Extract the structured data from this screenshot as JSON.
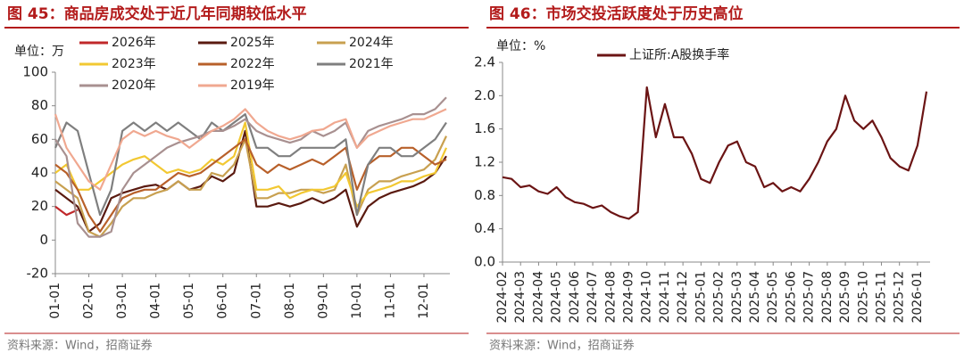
{
  "chart_data": [
    {
      "type": "line",
      "title": "图 45：商品房成交处于近几年同期较低水平",
      "unit": "单位：万",
      "source": "资料来源：Wind，招商证券",
      "categories": [
        "01-01",
        null,
        null,
        "02-01",
        null,
        null,
        "03-01",
        null,
        null,
        "04-01",
        null,
        null,
        "05-01",
        null,
        null,
        "06-01",
        null,
        null,
        "07-01",
        null,
        null,
        "08-01",
        null,
        null,
        "09-01",
        null,
        null,
        "10-01",
        null,
        null,
        "11-01",
        null,
        null,
        "12-01",
        null,
        null
      ],
      "ylim": [
        -20,
        100
      ],
      "yticks": [
        -20,
        0,
        20,
        40,
        60,
        80,
        100
      ],
      "series": [
        {
          "name": "2026年",
          "color": "#c0282a",
          "values": [
            20,
            15,
            18,
            null,
            null,
            null,
            null,
            null,
            null,
            null,
            null,
            null,
            null,
            null,
            null,
            null,
            null,
            null,
            null,
            null,
            null,
            null,
            null,
            null,
            null,
            null,
            null,
            null,
            null,
            null,
            null,
            null,
            null,
            null,
            null,
            null
          ]
        },
        {
          "name": "2025年",
          "color": "#5a1a10",
          "values": [
            30,
            25,
            20,
            5,
            10,
            25,
            28,
            30,
            32,
            33,
            30,
            35,
            30,
            32,
            38,
            35,
            40,
            65,
            20,
            20,
            22,
            20,
            22,
            25,
            22,
            25,
            30,
            8,
            20,
            25,
            28,
            30,
            32,
            35,
            40,
            50
          ]
        },
        {
          "name": "2024年",
          "color": "#c8a050",
          "values": [
            35,
            30,
            25,
            5,
            2,
            10,
            20,
            25,
            25,
            28,
            30,
            35,
            30,
            30,
            40,
            38,
            45,
            60,
            25,
            25,
            28,
            28,
            30,
            30,
            28,
            30,
            45,
            15,
            30,
            35,
            35,
            38,
            40,
            42,
            48,
            62
          ]
        },
        {
          "name": "2023年",
          "color": "#f2c832",
          "values": [
            40,
            45,
            30,
            30,
            35,
            40,
            45,
            48,
            50,
            45,
            40,
            42,
            40,
            42,
            48,
            45,
            50,
            70,
            30,
            30,
            32,
            25,
            28,
            30,
            30,
            32,
            40,
            20,
            28,
            30,
            32,
            35,
            35,
            38,
            40,
            55
          ]
        },
        {
          "name": "2022年",
          "color": "#b8602a",
          "values": [
            45,
            40,
            30,
            15,
            5,
            15,
            25,
            28,
            30,
            30,
            35,
            40,
            38,
            40,
            45,
            50,
            55,
            60,
            45,
            40,
            45,
            42,
            45,
            48,
            45,
            50,
            55,
            30,
            45,
            50,
            50,
            55,
            55,
            50,
            45,
            48
          ]
        },
        {
          "name": "2021年",
          "color": "#7f7f7f",
          "values": [
            55,
            70,
            65,
            40,
            15,
            30,
            65,
            70,
            65,
            70,
            65,
            70,
            65,
            60,
            70,
            65,
            70,
            75,
            55,
            55,
            50,
            50,
            55,
            55,
            55,
            55,
            60,
            15,
            45,
            55,
            55,
            50,
            50,
            55,
            60,
            70
          ]
        },
        {
          "name": "2020年",
          "color": "#a89090",
          "values": [
            60,
            50,
            10,
            2,
            2,
            5,
            30,
            40,
            45,
            50,
            55,
            58,
            60,
            62,
            65,
            65,
            68,
            72,
            65,
            62,
            60,
            58,
            60,
            65,
            62,
            65,
            70,
            55,
            65,
            68,
            70,
            72,
            75,
            75,
            78,
            85
          ]
        },
        {
          "name": "2019年",
          "color": "#f0a890",
          "values": [
            75,
            55,
            45,
            35,
            30,
            45,
            60,
            65,
            62,
            65,
            62,
            60,
            55,
            60,
            65,
            68,
            72,
            78,
            70,
            65,
            62,
            60,
            62,
            65,
            66,
            70,
            72,
            55,
            62,
            65,
            68,
            70,
            72,
            72,
            75,
            78
          ]
        }
      ]
    },
    {
      "type": "line",
      "title": "图 46：市场交投活跃度处于历史高位",
      "unit": "单位：%",
      "source": "资料来源：Wind，招商证券",
      "categories": [
        "2024-02",
        null,
        "2024-03",
        null,
        "2024-04",
        null,
        "2024-05",
        null,
        "2024-06",
        null,
        "2024-07",
        null,
        "2024-08",
        null,
        "2024-09",
        null,
        "2024-10",
        null,
        "2024-11",
        null,
        "2024-12",
        null,
        "2025-01",
        null,
        "2025-02",
        null,
        "2025-03",
        null,
        "2025-04",
        null,
        "2025-05",
        null,
        "2025-06",
        null,
        "2025-07",
        null,
        "2025-08",
        null,
        "2025-09",
        null,
        "2025-10",
        null,
        "2025-11",
        null,
        "2025-12",
        null,
        "2026-01",
        null
      ],
      "ylim": [
        0,
        2.4
      ],
      "yticks": [
        {
          "value": 0,
          "label": "0.0"
        },
        0.4,
        0.8,
        1.2,
        1.6,
        {
          "value": 2,
          "label": "2.0"
        },
        2.4
      ],
      "series": [
        {
          "name": "上证所:A股换手率",
          "color": "#6b1414",
          "values": [
            1.02,
            1.0,
            0.9,
            0.92,
            0.85,
            0.82,
            0.9,
            0.78,
            0.72,
            0.7,
            0.65,
            0.68,
            0.6,
            0.55,
            0.52,
            0.6,
            2.1,
            1.5,
            1.9,
            1.5,
            1.5,
            1.3,
            1.0,
            0.95,
            1.2,
            1.4,
            1.45,
            1.2,
            1.15,
            0.9,
            0.95,
            0.85,
            0.9,
            0.85,
            1.0,
            1.2,
            1.45,
            1.6,
            2.0,
            1.7,
            1.6,
            1.7,
            1.5,
            1.25,
            1.15,
            1.1,
            1.4,
            2.05
          ]
        }
      ]
    }
  ]
}
